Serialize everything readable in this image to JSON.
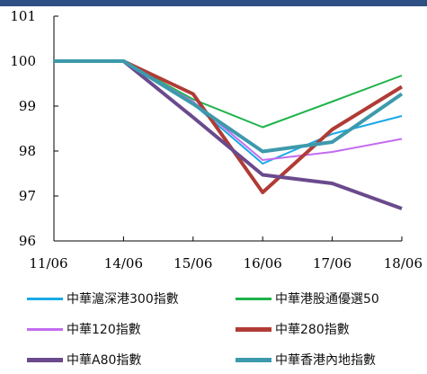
{
  "chart_data": {
    "type": "line",
    "title": "",
    "xlabel": "",
    "ylabel": "",
    "categories": [
      "11/06",
      "14/06",
      "15/06",
      "16/06",
      "17/06",
      "18/06"
    ],
    "ylim": [
      96,
      101
    ],
    "yticks": [
      "96",
      "97",
      "98",
      "99",
      "100",
      "101"
    ],
    "grid": false,
    "legend_position": "bottom",
    "series": [
      {
        "name": "中華滬深港300指數",
        "color": "#19a9e6",
        "width": 2,
        "values": [
          100,
          100,
          99.05,
          97.72,
          98.38,
          98.78
        ]
      },
      {
        "name": "中華港股通優選50",
        "color": "#1db34a",
        "width": 2,
        "values": [
          100,
          100,
          99.15,
          98.53,
          99.1,
          99.68
        ]
      },
      {
        "name": "中華120指數",
        "color": "#c36cf0",
        "width": 2,
        "values": [
          100,
          100,
          99.1,
          97.8,
          97.98,
          98.27
        ]
      },
      {
        "name": "中華280指數",
        "color": "#b03b36",
        "width": 4,
        "values": [
          100,
          100,
          99.27,
          97.08,
          98.48,
          99.43
        ]
      },
      {
        "name": "中華A80指數",
        "color": "#6a4a8c",
        "width": 4,
        "values": [
          100,
          100,
          98.75,
          97.47,
          97.28,
          96.72
        ]
      },
      {
        "name": "中華香港內地指數",
        "color": "#3d9aac",
        "width": 4,
        "values": [
          100,
          100,
          99.05,
          97.99,
          98.2,
          99.27
        ]
      }
    ]
  }
}
